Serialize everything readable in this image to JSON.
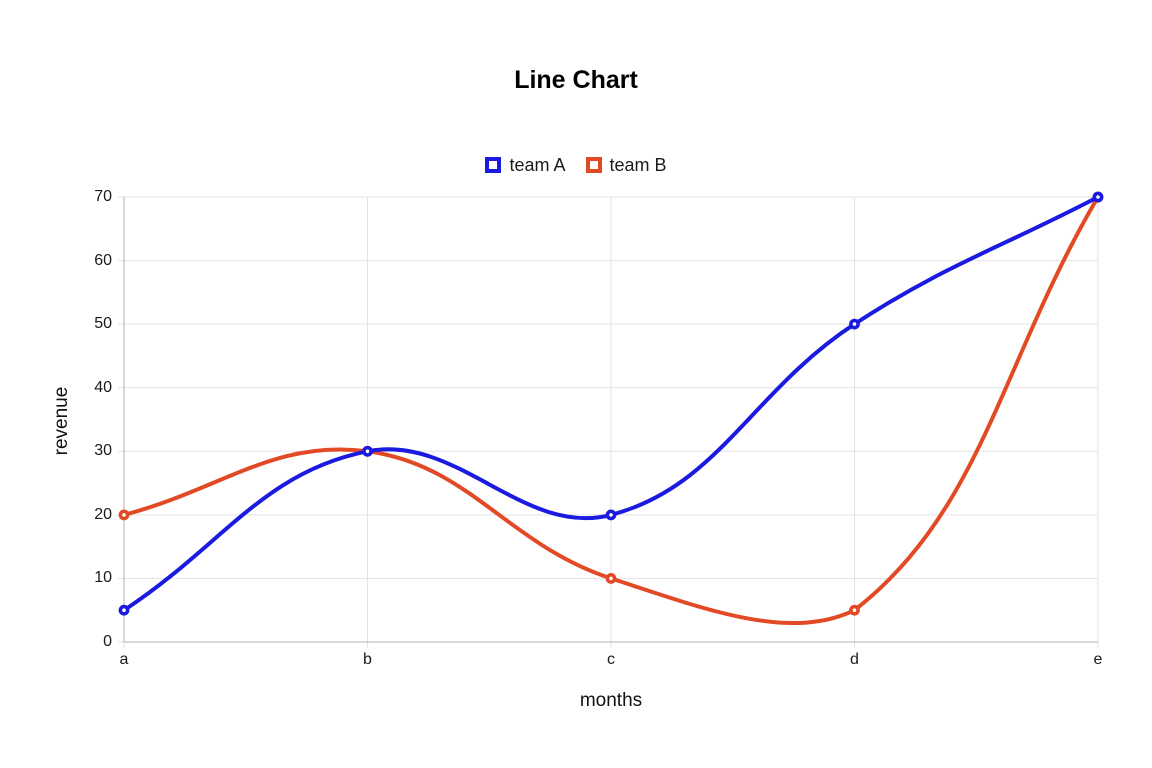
{
  "chart_data": {
    "type": "line",
    "title": "Line Chart",
    "xlabel": "months",
    "ylabel": "revenue",
    "categories": [
      "a",
      "b",
      "c",
      "d",
      "e"
    ],
    "series": [
      {
        "name": "team A",
        "color": "#1a1ae0",
        "values": [
          5,
          30,
          20,
          50,
          70
        ]
      },
      {
        "name": "team B",
        "color": "#e24a26",
        "values": [
          20,
          30,
          10,
          5,
          70
        ]
      }
    ],
    "ylim": [
      0,
      70
    ],
    "yticks": [
      0,
      10,
      20,
      30,
      40,
      50,
      60,
      70
    ],
    "grid": true,
    "legend_position": "top",
    "line_style": "smooth",
    "line_tension": 0.4,
    "colors": {
      "background": "#ffffff",
      "grid": "#e3e3e3",
      "axis": "#b0b0b0",
      "tick_text": "#1a1a1a",
      "title_text": "#000000"
    }
  }
}
